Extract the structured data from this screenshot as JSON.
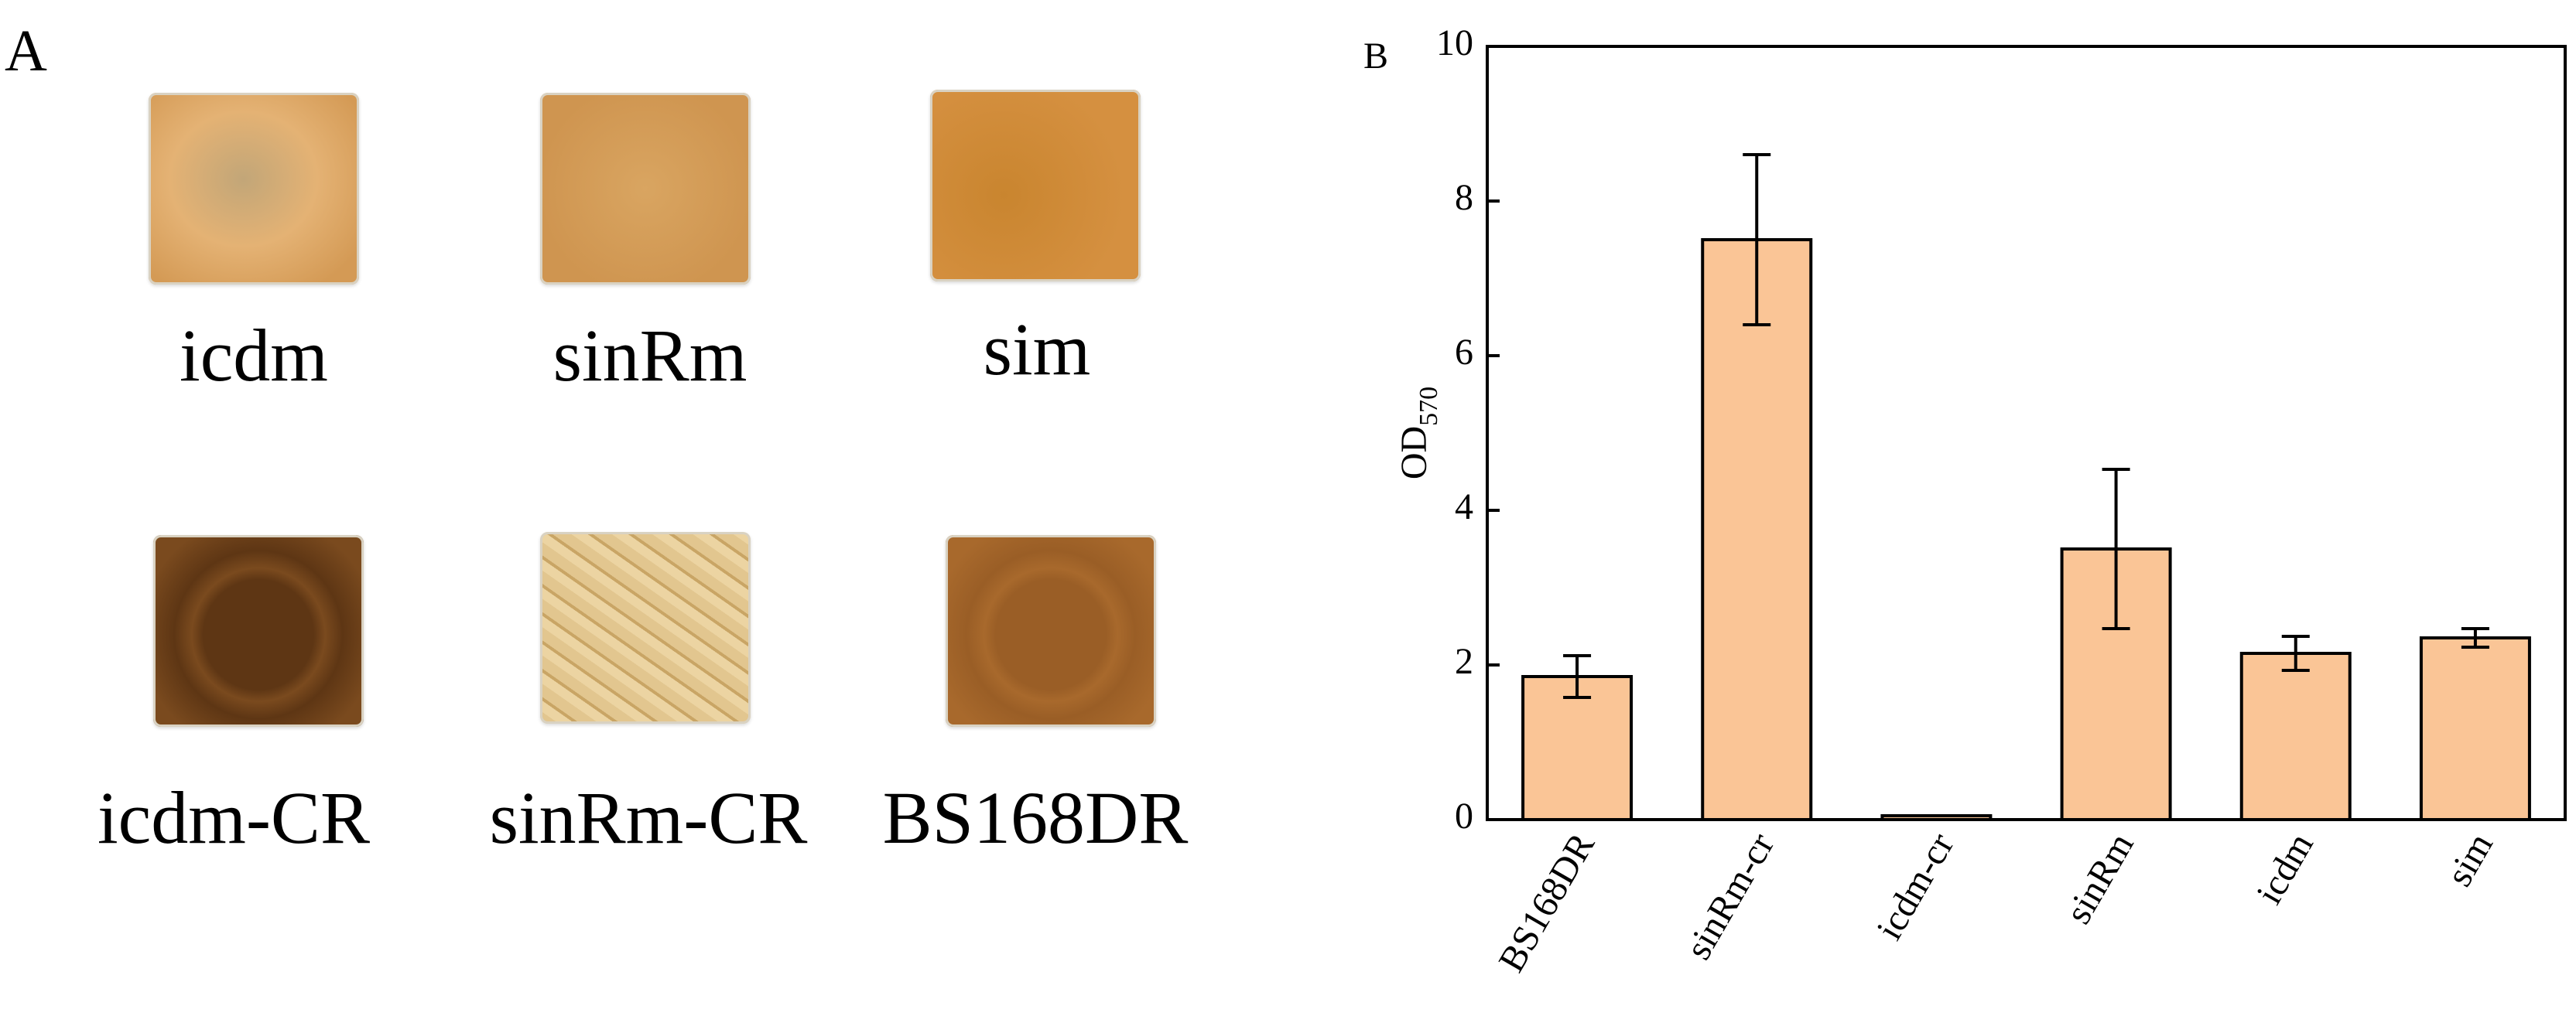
{
  "panel_a": {
    "label": "A",
    "wells": [
      {
        "name": "icdm",
        "base": "#d49a55",
        "center": "#e4b274",
        "texture": "blotch"
      },
      {
        "name": "sinRm",
        "base": "#cf9550",
        "center": "#d9a561",
        "texture": "grain"
      },
      {
        "name": "sim",
        "base": "#d59040",
        "center": "#c9852f",
        "texture": "smooth"
      },
      {
        "name": "icdm-CR",
        "base": "#7a4a1e",
        "center": "#5e3614",
        "texture": "ring"
      },
      {
        "name": "sinRm-CR",
        "base": "#e2c68f",
        "center": "#ecd4a2",
        "texture": "wrinkle"
      },
      {
        "name": "BS168DR",
        "base": "#a8692c",
        "center": "#9a5e26",
        "texture": "ring"
      }
    ]
  },
  "chart_data": {
    "panel_label": "B",
    "type": "bar",
    "categories": [
      "BS168DR",
      "sinRm-cr",
      "icdm-cr",
      "sinRm",
      "icdm",
      "sim"
    ],
    "values": [
      1.85,
      7.5,
      0.05,
      3.5,
      2.15,
      2.35
    ],
    "errors": [
      0.27,
      1.1,
      0.02,
      1.03,
      0.22,
      0.12
    ],
    "ylabel": "OD",
    "ylabel_sub": "570",
    "ylim": [
      0,
      10
    ],
    "yticks": [
      "0",
      "2",
      "4",
      "6",
      "8",
      "10"
    ],
    "bar_color": "#fac596",
    "grid": false
  }
}
